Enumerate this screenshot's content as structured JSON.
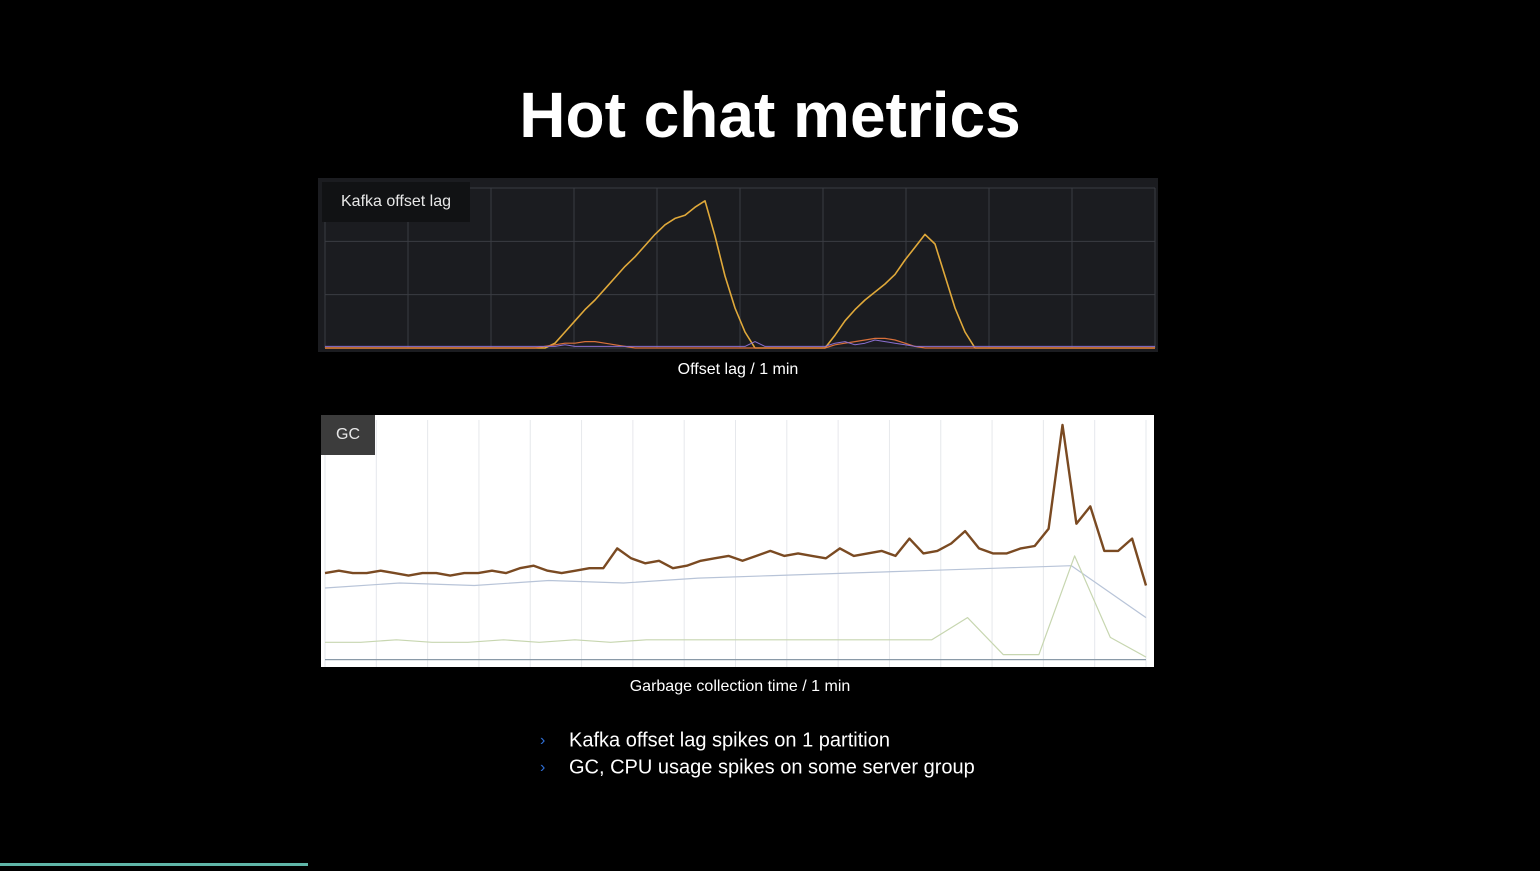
{
  "title": "Hot chat metrics",
  "charts": [
    {
      "type": "line",
      "label": "Kafka offset lag",
      "caption": "Offset lag / 1 min",
      "ylim": [
        0,
        100
      ],
      "series": [
        {
          "color": "#e0a93a",
          "values": [
            0,
            0,
            0,
            0,
            0,
            0,
            0,
            0,
            0,
            0,
            0,
            0,
            0,
            0,
            0,
            0,
            0,
            0,
            0,
            0,
            0,
            0,
            0,
            3,
            10,
            17,
            24,
            30,
            37,
            44,
            51,
            57,
            64,
            71,
            77,
            81,
            83,
            88,
            92,
            70,
            45,
            25,
            10,
            0,
            0,
            0,
            0,
            0,
            0,
            0,
            0,
            8,
            17,
            24,
            30,
            35,
            40,
            46,
            55,
            63,
            71,
            65,
            45,
            25,
            10,
            0,
            0,
            0,
            0,
            0,
            0,
            0,
            0,
            0,
            0,
            0,
            0,
            0,
            0,
            0,
            0,
            0,
            0,
            0
          ]
        },
        {
          "color": "#d9703a",
          "values": [
            0,
            0,
            0,
            0,
            0,
            0,
            0,
            0,
            0,
            0,
            0,
            0,
            0,
            0,
            0,
            0,
            0,
            0,
            0,
            0,
            0,
            0,
            1,
            2,
            3,
            3,
            4,
            4,
            3,
            2,
            1,
            0,
            0,
            0,
            0,
            0,
            0,
            0,
            0,
            0,
            0,
            0,
            0,
            0,
            0,
            0,
            0,
            0,
            0,
            0,
            0,
            2,
            3,
            4,
            5,
            6,
            6,
            5,
            3,
            1,
            0,
            0,
            0,
            0,
            0,
            0,
            0,
            0,
            0,
            0,
            0,
            0,
            0,
            0,
            0,
            0,
            0,
            0,
            0,
            0,
            0,
            0,
            0,
            0
          ]
        },
        {
          "color": "#8a6fd0",
          "values": [
            1,
            1,
            1,
            1,
            1,
            1,
            1,
            1,
            1,
            1,
            1,
            1,
            1,
            1,
            1,
            1,
            1,
            1,
            1,
            1,
            1,
            1,
            1,
            1,
            2,
            1,
            1,
            1,
            1,
            1,
            1,
            1,
            1,
            1,
            1,
            1,
            1,
            1,
            1,
            1,
            1,
            1,
            1,
            4,
            1,
            1,
            1,
            1,
            1,
            1,
            1,
            3,
            4,
            2,
            3,
            5,
            4,
            3,
            2,
            1,
            1,
            1,
            1,
            1,
            1,
            1,
            1,
            1,
            1,
            1,
            1,
            1,
            1,
            1,
            1,
            1,
            1,
            1,
            1,
            1,
            1,
            1,
            1,
            1
          ]
        }
      ]
    },
    {
      "type": "line",
      "label": "GC",
      "caption": "Garbage collection time / 1 min",
      "ylim": [
        0,
        100
      ],
      "series": [
        {
          "color": "#7a4a22",
          "values": [
            38,
            39,
            38,
            38,
            39,
            38,
            37,
            38,
            38,
            37,
            38,
            38,
            39,
            38,
            40,
            41,
            39,
            38,
            39,
            40,
            40,
            48,
            44,
            42,
            43,
            40,
            41,
            43,
            44,
            45,
            43,
            45,
            47,
            45,
            46,
            45,
            44,
            48,
            45,
            46,
            47,
            45,
            52,
            46,
            47,
            50,
            55,
            48,
            46,
            46,
            48,
            49,
            56,
            98,
            58,
            65,
            47,
            47,
            52,
            33
          ]
        },
        {
          "color": "#b8c4d8",
          "values": [
            32,
            34,
            33,
            35,
            34,
            36,
            37,
            38,
            39,
            40,
            41,
            20
          ]
        },
        {
          "color": "#c7d6b0",
          "values": [
            10,
            10,
            11,
            10,
            10,
            11,
            10,
            11,
            10,
            11,
            11,
            11,
            11,
            11,
            11,
            11,
            11,
            11,
            20,
            5,
            5,
            45,
            12,
            4
          ]
        },
        {
          "color": "#8a9aa8",
          "values": [
            3,
            3,
            3,
            3,
            3,
            3,
            3,
            3,
            3,
            3,
            3,
            3,
            3,
            3,
            3,
            3,
            3,
            3,
            3,
            3,
            3,
            3,
            3,
            3
          ]
        }
      ]
    }
  ],
  "bullets": [
    "Kafka offset lag spikes on 1 partition",
    "GC, CPU usage spikes on some server group"
  ]
}
